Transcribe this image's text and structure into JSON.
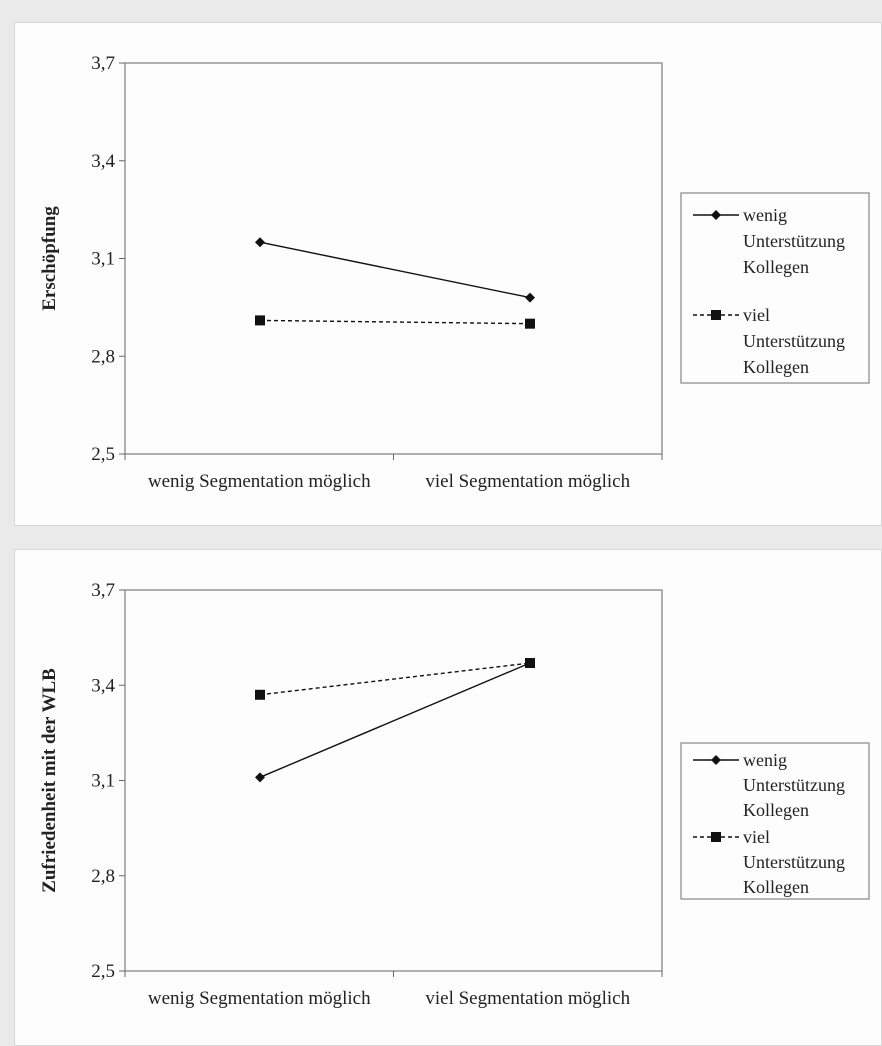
{
  "chart_data": [
    {
      "type": "line",
      "title": "",
      "xlabel": "",
      "ylabel": "Erschöpfung",
      "categories": [
        "wenig Segmentation möglich",
        "viel Segmentation möglich"
      ],
      "ylim": [
        2.5,
        3.7
      ],
      "yticks": [
        "2,5",
        "2,8",
        "3,1",
        "3,4",
        "3,7"
      ],
      "ytick_values": [
        2.5,
        2.8,
        3.1,
        3.4,
        3.7
      ],
      "grid": false,
      "legend_position": "right",
      "series": [
        {
          "name": "wenig Unterstützung Kollegen",
          "legend_lines": [
            "wenig",
            "Unterstützung",
            "Kollegen"
          ],
          "marker": "diamond",
          "line": "solid",
          "values": [
            3.15,
            2.98
          ]
        },
        {
          "name": "viel Unterstützung Kollegen",
          "legend_lines": [
            "viel",
            "Unterstützung",
            "Kollegen"
          ],
          "marker": "square",
          "line": "dashed",
          "values": [
            2.91,
            2.9
          ]
        }
      ]
    },
    {
      "type": "line",
      "title": "",
      "xlabel": "",
      "ylabel": "Zufriedenheit mit der WLB",
      "categories": [
        "wenig Segmentation möglich",
        "viel Segmentation möglich"
      ],
      "ylim": [
        2.5,
        3.7
      ],
      "yticks": [
        "2,5",
        "2,8",
        "3,1",
        "3,4",
        "3,7"
      ],
      "ytick_values": [
        2.5,
        2.8,
        3.1,
        3.4,
        3.7
      ],
      "grid": false,
      "legend_position": "right",
      "series": [
        {
          "name": "wenig Unterstützung Kollegen",
          "legend_lines": [
            "wenig",
            "Unterstützung",
            "Kollegen"
          ],
          "marker": "diamond",
          "line": "solid",
          "values": [
            3.11,
            3.47
          ]
        },
        {
          "name": "viel Unterstützung Kollegen",
          "legend_lines": [
            "viel",
            "Unterstützung",
            "Kollegen"
          ],
          "marker": "square",
          "line": "dashed",
          "values": [
            3.37,
            3.47
          ]
        }
      ]
    }
  ]
}
